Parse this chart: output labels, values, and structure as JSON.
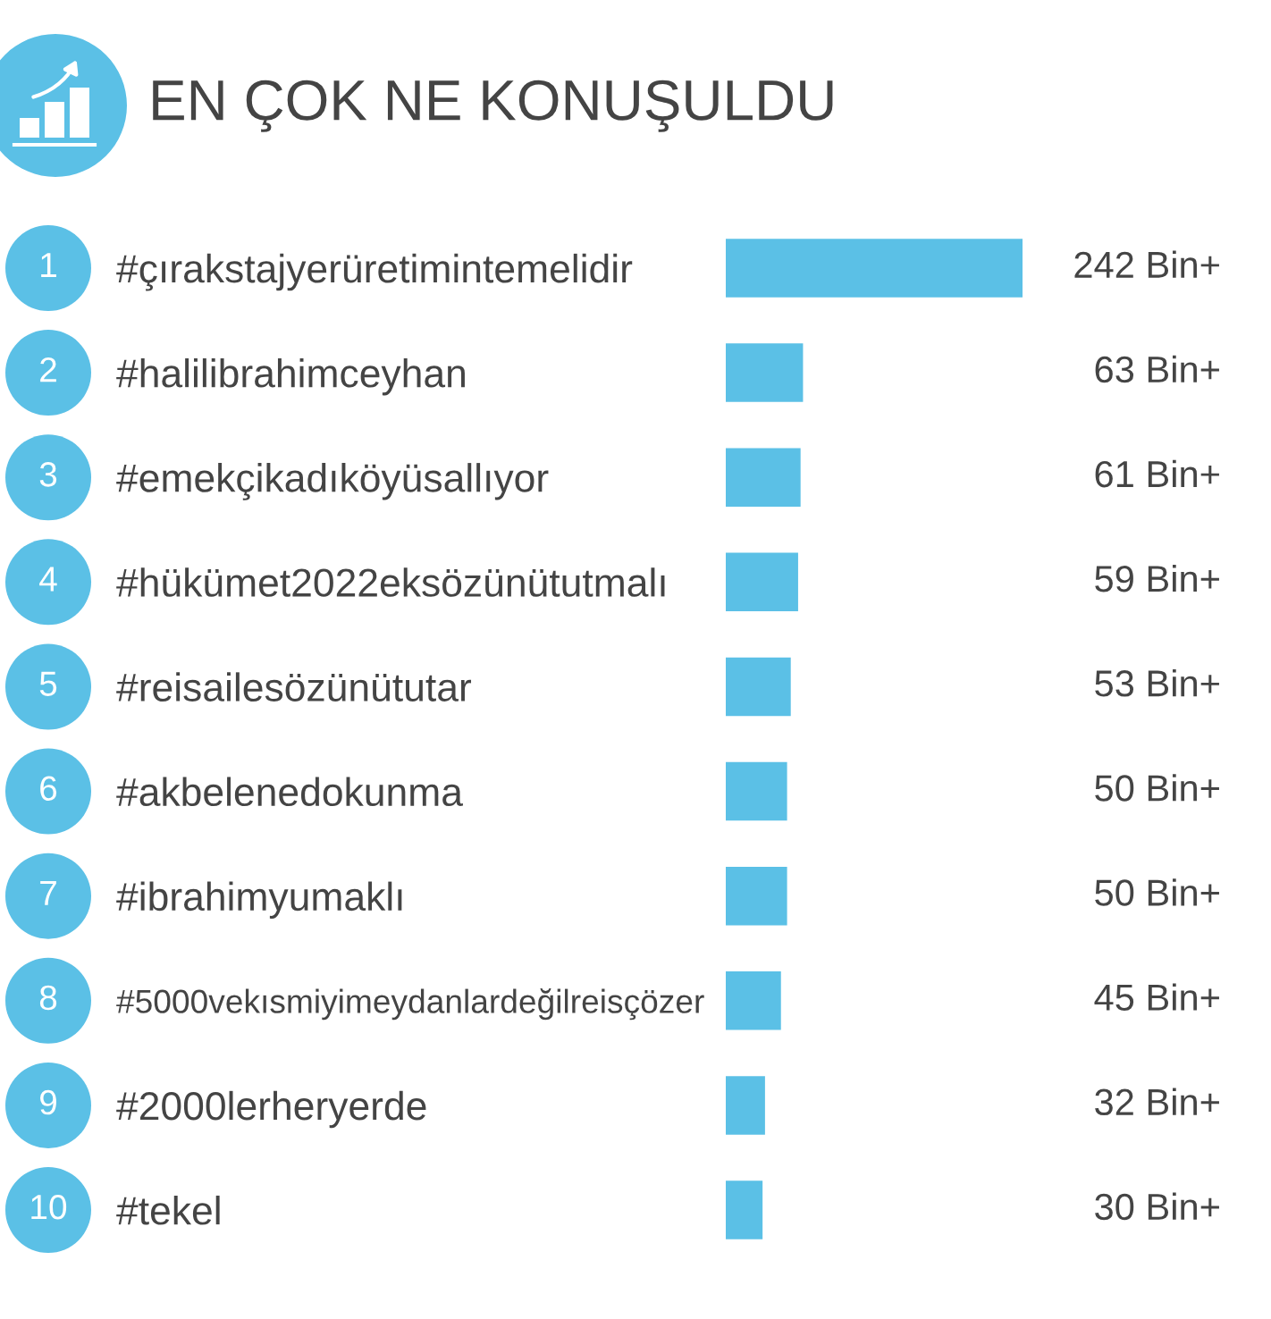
{
  "chart_data": {
    "type": "bar",
    "orientation": "horizontal",
    "title": "EN ÇOK NE KONUŞULDU",
    "categories": [
      "#çırakstajyerüretimintemelidir",
      "#halilibrahimceyhan",
      "#emekçikadıköyüsallıyor",
      "#hükümet2022eksözünütutmalı",
      "#reisailesözünütutar",
      "#akbelenedokunma",
      "#ibrahimyumaklı",
      "#5000vekısmiyimeydanlardeğilreisçözer",
      "#2000lerheryerde",
      "#tekel"
    ],
    "values": [
      242,
      63,
      61,
      59,
      53,
      50,
      50,
      45,
      32,
      30
    ],
    "value_labels": [
      "242 Bin+",
      "63 Bin+",
      "61 Bin+",
      "59 Bin+",
      "53 Bin+",
      "50 Bin+",
      "50 Bin+",
      "45 Bin+",
      "32 Bin+",
      "30 Bin+"
    ],
    "color": "#5bc0e6",
    "annotations": [
      "1",
      "2",
      "3",
      "4",
      "5",
      "6",
      "7",
      "8",
      "9",
      "10"
    ],
    "tick_labels": "y"
  }
}
